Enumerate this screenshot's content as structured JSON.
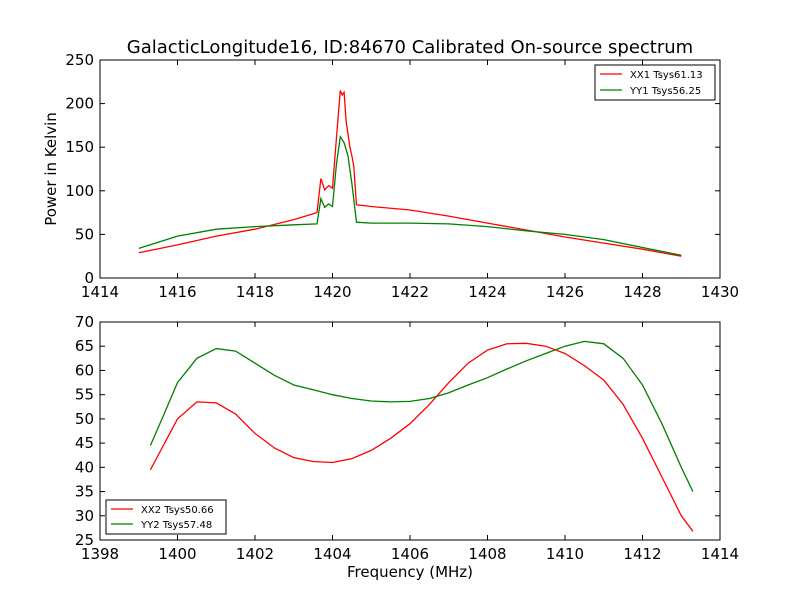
{
  "figure": {
    "title": "GalacticLongitude16, ID:84670 Calibrated On-source spectrum",
    "xlabel": "Frequency (MHz)"
  },
  "chart_data": [
    {
      "type": "line",
      "title": "GalacticLongitude16, ID:84670 Calibrated On-source spectrum",
      "xlabel": "",
      "ylabel": "Power in Kelvin",
      "xlim": [
        1414,
        1430
      ],
      "ylim": [
        0,
        250
      ],
      "xticks": [
        1414,
        1416,
        1418,
        1420,
        1422,
        1424,
        1426,
        1428,
        1430
      ],
      "yticks": [
        0,
        50,
        100,
        150,
        200,
        250
      ],
      "grid": false,
      "legend": "top-right",
      "series": [
        {
          "name": "XX1 Tsys61.13",
          "color": "#ff0000",
          "points": [
            [
              1415,
              29
            ],
            [
              1416,
              38
            ],
            [
              1417,
              48
            ],
            [
              1418,
              56
            ],
            [
              1419,
              67
            ],
            [
              1419.6,
              75
            ],
            [
              1419.7,
              114
            ],
            [
              1419.8,
              101
            ],
            [
              1419.9,
              106
            ],
            [
              1420.0,
              103
            ],
            [
              1420.1,
              160
            ],
            [
              1420.2,
              215
            ],
            [
              1420.25,
              210
            ],
            [
              1420.3,
              213
            ],
            [
              1420.35,
              180
            ],
            [
              1420.45,
              150
            ],
            [
              1420.5,
              140
            ],
            [
              1420.55,
              128
            ],
            [
              1420.62,
              84
            ],
            [
              1421,
              82
            ],
            [
              1422,
              78
            ],
            [
              1423,
              71
            ],
            [
              1424,
              63
            ],
            [
              1425,
              55
            ],
            [
              1426,
              47
            ],
            [
              1427,
              40
            ],
            [
              1428,
              33
            ],
            [
              1429,
              25
            ]
          ]
        },
        {
          "name": "YY1 Tsys56.25",
          "color": "#008000",
          "points": [
            [
              1415,
              34
            ],
            [
              1416,
              48
            ],
            [
              1417,
              56
            ],
            [
              1418,
              59
            ],
            [
              1419,
              61
            ],
            [
              1419.6,
              62
            ],
            [
              1419.7,
              91
            ],
            [
              1419.8,
              81
            ],
            [
              1419.9,
              85
            ],
            [
              1420.0,
              82
            ],
            [
              1420.1,
              130
            ],
            [
              1420.2,
              162
            ],
            [
              1420.3,
              155
            ],
            [
              1420.4,
              140
            ],
            [
              1420.5,
              108
            ],
            [
              1420.62,
              64
            ],
            [
              1421,
              63
            ],
            [
              1422,
              63
            ],
            [
              1423,
              62
            ],
            [
              1424,
              59
            ],
            [
              1425,
              54
            ],
            [
              1426,
              50
            ],
            [
              1427,
              44
            ],
            [
              1428,
              35
            ],
            [
              1429,
              26
            ]
          ]
        }
      ]
    },
    {
      "type": "line",
      "title": "",
      "xlabel": "Frequency (MHz)",
      "ylabel": "",
      "xlim": [
        1398,
        1414
      ],
      "ylim": [
        25,
        70
      ],
      "xticks": [
        1398,
        1400,
        1402,
        1404,
        1406,
        1408,
        1410,
        1412,
        1414
      ],
      "yticks": [
        25,
        30,
        35,
        40,
        45,
        50,
        55,
        60,
        65,
        70
      ],
      "grid": false,
      "legend": "bottom-left",
      "series": [
        {
          "name": "XX2 Tsys50.66",
          "color": "#ff0000",
          "points": [
            [
              1399.3,
              39.5
            ],
            [
              1399.6,
              44
            ],
            [
              1400.0,
              50
            ],
            [
              1400.5,
              53.5
            ],
            [
              1401.0,
              53.3
            ],
            [
              1401.5,
              51
            ],
            [
              1402.0,
              47
            ],
            [
              1402.5,
              44
            ],
            [
              1403.0,
              42
            ],
            [
              1403.5,
              41.2
            ],
            [
              1404.0,
              41
            ],
            [
              1404.5,
              41.8
            ],
            [
              1405.0,
              43.5
            ],
            [
              1405.5,
              46
            ],
            [
              1406.0,
              49
            ],
            [
              1406.5,
              53
            ],
            [
              1407.0,
              57.5
            ],
            [
              1407.5,
              61.5
            ],
            [
              1408.0,
              64.2
            ],
            [
              1408.5,
              65.5
            ],
            [
              1409.0,
              65.6
            ],
            [
              1409.5,
              65
            ],
            [
              1410.0,
              63.5
            ],
            [
              1410.5,
              61
            ],
            [
              1411.0,
              58
            ],
            [
              1411.5,
              53
            ],
            [
              1412.0,
              46
            ],
            [
              1412.5,
              38
            ],
            [
              1413.0,
              30
            ],
            [
              1413.3,
              26.8
            ]
          ]
        },
        {
          "name": "YY2 Tsys57.48",
          "color": "#008000",
          "points": [
            [
              1399.3,
              44.5
            ],
            [
              1399.6,
              50
            ],
            [
              1400.0,
              57.5
            ],
            [
              1400.5,
              62.5
            ],
            [
              1401.0,
              64.5
            ],
            [
              1401.5,
              64
            ],
            [
              1402.0,
              61.5
            ],
            [
              1402.5,
              59
            ],
            [
              1403.0,
              57
            ],
            [
              1403.5,
              56
            ],
            [
              1404.0,
              55
            ],
            [
              1404.5,
              54.2
            ],
            [
              1405.0,
              53.7
            ],
            [
              1405.5,
              53.5
            ],
            [
              1406.0,
              53.6
            ],
            [
              1406.5,
              54.2
            ],
            [
              1407.0,
              55.4
            ],
            [
              1407.5,
              57
            ],
            [
              1408.0,
              58.5
            ],
            [
              1408.5,
              60.3
            ],
            [
              1409.0,
              62
            ],
            [
              1409.5,
              63.5
            ],
            [
              1410.0,
              65
            ],
            [
              1410.5,
              66
            ],
            [
              1411.0,
              65.5
            ],
            [
              1411.5,
              62.5
            ],
            [
              1412.0,
              57
            ],
            [
              1412.5,
              49
            ],
            [
              1413.0,
              40
            ],
            [
              1413.3,
              35
            ]
          ]
        }
      ]
    }
  ]
}
